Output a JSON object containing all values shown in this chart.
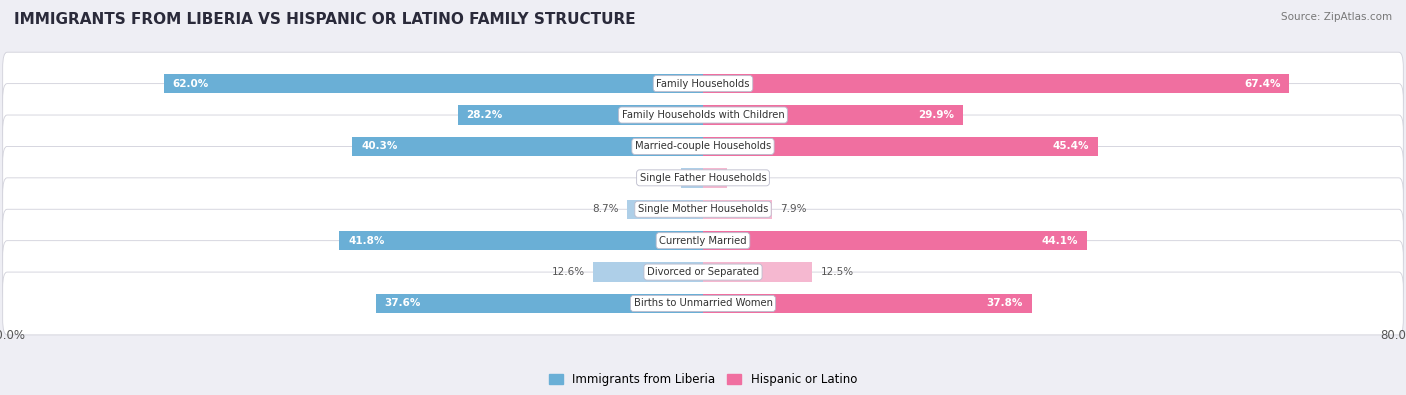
{
  "title": "IMMIGRANTS FROM LIBERIA VS HISPANIC OR LATINO FAMILY STRUCTURE",
  "source": "Source: ZipAtlas.com",
  "categories": [
    "Family Households",
    "Family Households with Children",
    "Married-couple Households",
    "Single Father Households",
    "Single Mother Households",
    "Currently Married",
    "Divorced or Separated",
    "Births to Unmarried Women"
  ],
  "liberia_values": [
    62.0,
    28.2,
    40.3,
    2.5,
    8.7,
    41.8,
    12.6,
    37.6
  ],
  "hispanic_values": [
    67.4,
    29.9,
    45.4,
    2.8,
    7.9,
    44.1,
    12.5,
    37.8
  ],
  "axis_max": 80.0,
  "liberia_color_dark": "#6aafd6",
  "liberia_color_light": "#aecfe8",
  "hispanic_color_dark": "#f06fa0",
  "hispanic_color_light": "#f5b8d0",
  "bar_height": 0.62,
  "background_color": "#eeeef4",
  "row_bg_color": "#ffffff",
  "label_color_white": "#ffffff",
  "label_color_dark": "#555555",
  "threshold_white": 15.0,
  "legend_liberia": "Immigrants from Liberia",
  "legend_hispanic": "Hispanic or Latino"
}
